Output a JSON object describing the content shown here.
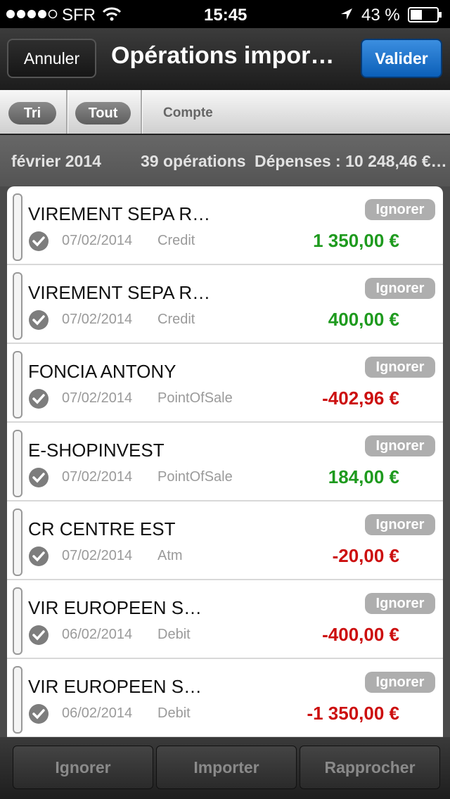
{
  "status_bar": {
    "carrier": "SFR",
    "time": "15:45",
    "battery": "43 %"
  },
  "nav_bar": {
    "left_button": "Annuler",
    "title": "Opérations impor…",
    "right_button": "Valider"
  },
  "toolbar": {
    "sort_button": "Tri",
    "filter_button": "Tout",
    "column": "Compte"
  },
  "summary": {
    "month": "février 2014",
    "count": "39 opérations",
    "expenses": "Dépenses : 10 248,46 €…"
  },
  "transactions": [
    {
      "name": "VIREMENT SEPA R…",
      "date": "07/02/2014",
      "type": "Credit",
      "amount": "1 350,00 €",
      "amount_color": "#1e9a1e",
      "action": "Ignorer"
    },
    {
      "name": "VIREMENT SEPA R…",
      "date": "07/02/2014",
      "type": "Credit",
      "amount": "400,00 €",
      "amount_color": "#1e9a1e",
      "action": "Ignorer"
    },
    {
      "name": "FONCIA ANTONY",
      "date": "07/02/2014",
      "type": "PointOfSale",
      "amount": "-402,96 €",
      "amount_color": "#cc0f0f",
      "action": "Ignorer"
    },
    {
      "name": "E-SHOPINVEST",
      "date": "07/02/2014",
      "type": "PointOfSale",
      "amount": "184,00 €",
      "amount_color": "#1e9a1e",
      "action": "Ignorer"
    },
    {
      "name": "CR CENTRE EST",
      "date": "07/02/2014",
      "type": "Atm",
      "amount": "-20,00 €",
      "amount_color": "#cc0f0f",
      "action": "Ignorer"
    },
    {
      "name": "VIR EUROPEEN S…",
      "date": "06/02/2014",
      "type": "Debit",
      "amount": "-400,00 €",
      "amount_color": "#cc0f0f",
      "action": "Ignorer"
    },
    {
      "name": "VIR EUROPEEN S…",
      "date": "06/02/2014",
      "type": "Debit",
      "amount": "-1 350,00 €",
      "amount_color": "#cc0f0f",
      "action": "Ignorer"
    }
  ],
  "bottom_bar": {
    "buttons": [
      "Ignorer",
      "Importer",
      "Rapprocher"
    ]
  }
}
